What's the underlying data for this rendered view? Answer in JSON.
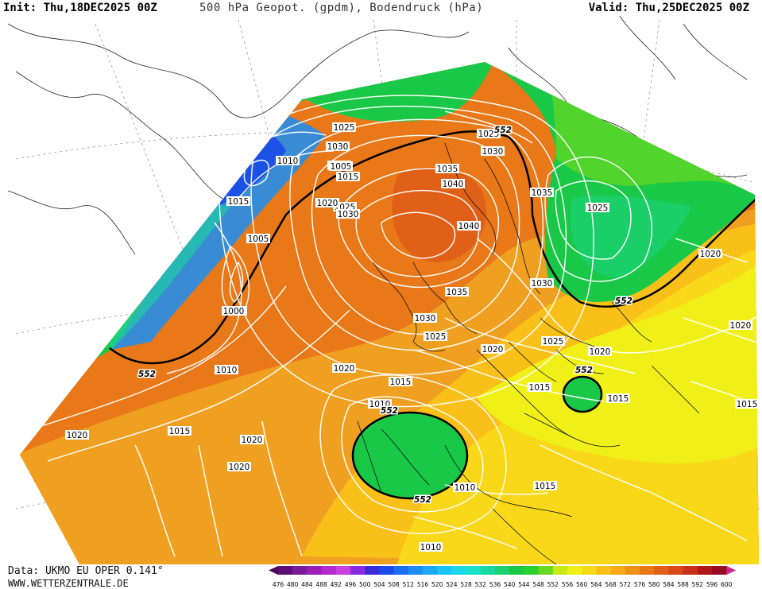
{
  "header": {
    "init": "Init: Thu,18DEC2025 00Z",
    "title": "500 hPa Geopot. (gpdm), Bodendruck (hPa)",
    "valid": "Valid: Thu,25DEC2025 00Z"
  },
  "footer": {
    "data_source": "Data: UKMO EU OPER 0.141°",
    "website": "WWW.WETTERZENTRALE.DE"
  },
  "colors": {
    "ocean_bg": "#ffffff",
    "contour_line": "#ffffff",
    "geo_552_line": "#000000"
  },
  "colorbar": {
    "ticks": [
      "476",
      "480",
      "484",
      "488",
      "492",
      "496",
      "500",
      "504",
      "508",
      "512",
      "516",
      "520",
      "524",
      "528",
      "532",
      "536",
      "540",
      "544",
      "548",
      "552",
      "556",
      "560",
      "564",
      "568",
      "572",
      "576",
      "580",
      "584",
      "588",
      "592",
      "596",
      "600"
    ],
    "colors": [
      "#4a0a5a",
      "#5c0d78",
      "#7a1a9a",
      "#9a1fb8",
      "#b52ad0",
      "#c83fe0",
      "#8a2ae0",
      "#3a2ad8",
      "#1a4ae8",
      "#1a6ef0",
      "#1a8ef5",
      "#1aaaf8",
      "#1ac4f8",
      "#1ad8e8",
      "#1ae0c8",
      "#1ad8a0",
      "#1ad070",
      "#1ac848",
      "#2ad030",
      "#6ad820",
      "#c8e818",
      "#f0f018",
      "#f8d818",
      "#f8c018",
      "#f8a818",
      "#f09018",
      "#e87818",
      "#e06018",
      "#d84818",
      "#c83018",
      "#b01818",
      "#980a20",
      "#d0208a"
    ]
  },
  "isobar_labels": [
    {
      "text": "1000"
    },
    {
      "text": "1005"
    },
    {
      "text": "1010"
    },
    {
      "text": "1010"
    },
    {
      "text": "1015"
    },
    {
      "text": "1015"
    },
    {
      "text": "1025"
    },
    {
      "text": "1030"
    },
    {
      "text": "1035"
    },
    {
      "text": "1040"
    },
    {
      "text": "1040"
    },
    {
      "text": "1035"
    },
    {
      "text": "1025"
    },
    {
      "text": "1030"
    },
    {
      "text": "1020"
    },
    {
      "text": "1025"
    },
    {
      "text": "1030"
    },
    {
      "text": "1005"
    },
    {
      "text": "1000"
    },
    {
      "text": "1010"
    },
    {
      "text": "1020"
    },
    {
      "text": "1015"
    },
    {
      "text": "1020"
    },
    {
      "text": "1035"
    },
    {
      "text": "1030"
    },
    {
      "text": "1025"
    },
    {
      "text": "1020"
    },
    {
      "text": "1025"
    },
    {
      "text": "1020"
    },
    {
      "text": "1020"
    },
    {
      "text": "1015"
    },
    {
      "text": "1015"
    },
    {
      "text": "1010"
    },
    {
      "text": "1020"
    },
    {
      "text": "1015"
    },
    {
      "text": "1020"
    },
    {
      "text": "1020"
    },
    {
      "text": "1010"
    },
    {
      "text": "1015"
    },
    {
      "text": "1010"
    },
    {
      "text": "1015"
    },
    {
      "text": "1020"
    },
    {
      "text": "1015"
    },
    {
      "text": "1025"
    },
    {
      "text": "1030"
    }
  ],
  "geopot_labels": [
    {
      "text": "552"
    },
    {
      "text": "552"
    },
    {
      "text": "552"
    },
    {
      "text": "552"
    },
    {
      "text": "552"
    },
    {
      "text": "552"
    }
  ]
}
